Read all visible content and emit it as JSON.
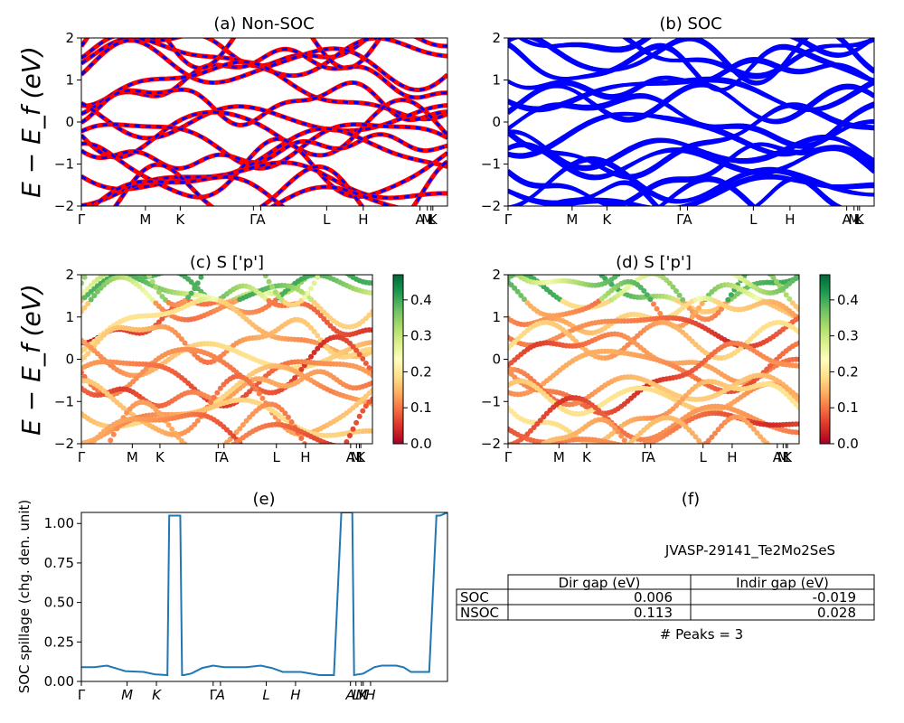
{
  "panels": {
    "a": {
      "title": "(a) Non-SOC"
    },
    "b": {
      "title": "(b) SOC"
    },
    "c": {
      "title": "(c)  S ['p']"
    },
    "d": {
      "title": "(d) S ['p']"
    },
    "e": {
      "title": "(e)"
    },
    "f": {
      "title": "(f)"
    }
  },
  "energy_axis": {
    "ylabel": "E − E_f (eV)",
    "yticks": [
      "2",
      "1",
      "0",
      "−1",
      "−2"
    ],
    "ylim": [
      -2,
      2
    ],
    "kpath_labels": [
      "Γ",
      "M",
      "K",
      "Γ",
      "A",
      "L",
      "H",
      "A",
      "M",
      "L",
      "K"
    ]
  },
  "colorbar": {
    "ticks": [
      "0.4",
      "0.3",
      "0.2",
      "0.1",
      "0.0"
    ],
    "range": [
      0.0,
      0.47
    ],
    "colormap": "RdYlGn"
  },
  "colors": {
    "nonsoc_solid": "#ff0000",
    "nonsoc_dash": "#0000ff",
    "soc": "#0000ff",
    "spillage_line": "#1f77b4"
  },
  "spillage": {
    "ylabel": "SOC spillage (chg. den. unit)",
    "yticks": [
      "1.00",
      "0.75",
      "0.50",
      "0.25",
      "0.00"
    ],
    "kpath_labels": [
      "Γ",
      "M",
      "K",
      "Γ",
      "A",
      "L",
      "H",
      "A",
      "L",
      "M",
      "K",
      "H"
    ]
  },
  "info": {
    "material": "JVASP-29141_Te2Mo2SeS",
    "headers": [
      "Dir gap (eV)",
      "Indir gap (eV)"
    ],
    "rows": [
      {
        "label": "SOC",
        "dir": "0.006",
        "indir": "-0.019"
      },
      {
        "label": "NSOC",
        "dir": "0.113",
        "indir": "0.028"
      }
    ],
    "peaks": "# Peaks = 3"
  },
  "chart_data": [
    {
      "type": "line",
      "title": "(a) Non-SOC",
      "ylabel": "E − E_f (eV)",
      "ylim": [
        -2,
        2
      ],
      "x_labels": [
        "Γ",
        "M",
        "K",
        "Γ",
        "A",
        "L",
        "H",
        "A",
        "M",
        "L",
        "K"
      ],
      "series": [
        {
          "values": [
            1.6,
            1.0,
            1.3,
            1.55,
            1.3,
            1.0,
            1.4,
            1.6,
            1.5,
            1.55,
            1.6
          ]
        },
        {
          "values": [
            1.35,
            1.6,
            0.7,
            1.2,
            0.6,
            1.6,
            0.7,
            1.35,
            1.7,
            1.3,
            1.5
          ]
        },
        {
          "values": [
            -0.4,
            -0.1,
            -0.6,
            0.4,
            0.0,
            0.9,
            -0.1,
            -0.5,
            -0.1,
            -0.2,
            -0.3
          ]
        },
        {
          "values": [
            -1.0,
            -0.6,
            -1.2,
            -0.1,
            -0.2,
            0.1,
            -0.7,
            -1.0,
            -0.6,
            -0.8,
            -0.9
          ]
        },
        {
          "values": [
            -1.3,
            -1.1,
            -1.7,
            -0.8,
            -0.5,
            -0.9,
            -1.3,
            -1.4,
            -1.1,
            -1.5,
            -1.2
          ]
        },
        {
          "values": [
            -1.8,
            -1.5,
            -1.2,
            -1.6,
            -1.7,
            -1.5,
            -1.8,
            -1.9,
            -1.6,
            -1.2,
            -1.8
          ]
        }
      ]
    },
    {
      "type": "line",
      "title": "(b) SOC",
      "ylim": [
        -2,
        2
      ],
      "x_labels": [
        "Γ",
        "M",
        "K",
        "Γ",
        "A",
        "L",
        "H",
        "A",
        "M",
        "L",
        "K"
      ],
      "series": [
        {
          "values": [
            1.6,
            1.0,
            1.3,
            1.55,
            1.3,
            1.0,
            1.4,
            1.6,
            1.5,
            1.55,
            1.6
          ]
        },
        {
          "values": [
            1.35,
            1.6,
            0.7,
            1.2,
            0.6,
            1.6,
            0.7,
            1.35,
            1.7,
            1.3,
            1.5
          ]
        },
        {
          "values": [
            -0.4,
            -0.1,
            -0.6,
            0.4,
            0.0,
            0.9,
            -0.1,
            -0.5,
            -0.1,
            -0.2,
            -0.3
          ]
        },
        {
          "values": [
            -1.0,
            -0.6,
            -1.2,
            -0.1,
            -0.2,
            0.1,
            -0.7,
            -1.0,
            -0.6,
            -0.8,
            -0.9
          ]
        },
        {
          "values": [
            -1.3,
            -1.1,
            -1.7,
            -0.8,
            -0.5,
            -0.9,
            -1.3,
            -1.4,
            -1.1,
            -1.5,
            -1.2
          ]
        },
        {
          "values": [
            -1.8,
            -1.5,
            -1.2,
            -1.6,
            -1.7,
            -1.5,
            -1.8,
            -1.9,
            -1.6,
            -1.2,
            -1.8
          ]
        }
      ]
    },
    {
      "type": "scatter",
      "title": "(c)  S ['p']",
      "ylim": [
        -2,
        2
      ],
      "colorbar_range": [
        0.0,
        0.47
      ]
    },
    {
      "type": "scatter",
      "title": "(d) S ['p']",
      "ylim": [
        -2,
        2
      ],
      "colorbar_range": [
        0.0,
        0.47
      ]
    },
    {
      "type": "line",
      "title": "(e)",
      "ylabel": "SOC spillage (chg. den. unit)",
      "ylim": [
        0,
        1.07
      ],
      "x_labels": [
        "Γ",
        "M",
        "K",
        "Γ",
        "A",
        "L",
        "H",
        "A",
        "L",
        "M",
        "K",
        "H"
      ],
      "x": [
        0,
        0.035,
        0.07,
        0.12,
        0.17,
        0.2,
        0.235,
        0.24,
        0.26,
        0.27,
        0.275,
        0.28,
        0.3,
        0.33,
        0.36,
        0.39,
        0.42,
        0.45,
        0.49,
        0.52,
        0.55,
        0.6,
        0.65,
        0.69,
        0.71,
        0.715,
        0.73,
        0.74,
        0.745,
        0.77,
        0.8,
        0.82,
        0.86,
        0.88,
        0.9,
        0.94,
        0.95,
        0.97,
        0.98,
        1.0
      ],
      "values": [
        0.09,
        0.09,
        0.1,
        0.065,
        0.06,
        0.045,
        0.04,
        1.05,
        1.05,
        1.05,
        0.04,
        0.04,
        0.05,
        0.085,
        0.1,
        0.09,
        0.09,
        0.09,
        0.1,
        0.085,
        0.06,
        0.06,
        0.04,
        0.04,
        1.07,
        1.07,
        1.07,
        1.07,
        0.04,
        0.05,
        0.09,
        0.1,
        0.1,
        0.09,
        0.06,
        0.06,
        0.06,
        1.05,
        1.05,
        1.07
      ]
    }
  ]
}
